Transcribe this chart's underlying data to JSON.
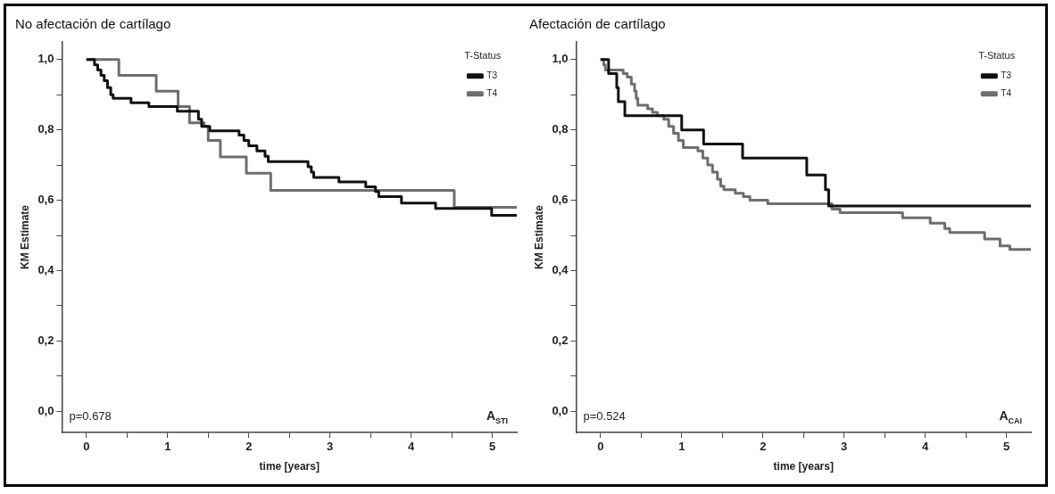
{
  "chart_data": [
    {
      "type": "step",
      "title": "No afectación de cartílago",
      "xlabel": "time [years]",
      "ylabel": "KM Estimate",
      "legend_title": "T-Status",
      "legend": "top right",
      "grid": false,
      "xlim": [
        -0.3,
        5.3
      ],
      "ylim": [
        -0.06,
        1.05
      ],
      "xticks": [
        0,
        {
          "value": 0.5,
          "label": null
        },
        1,
        {
          "value": 1.5,
          "label": null
        },
        2,
        {
          "value": 2.5,
          "label": null
        },
        3,
        {
          "value": 3.5,
          "label": null
        },
        4,
        {
          "value": 4.5,
          "label": null
        },
        5
      ],
      "yticks": [
        {
          "value": 0,
          "label": "0,0"
        },
        {
          "value": 0.1,
          "label": null
        },
        {
          "value": 0.2,
          "label": "0,2"
        },
        {
          "value": 0.3,
          "label": null
        },
        {
          "value": 0.4,
          "label": "0,4"
        },
        {
          "value": 0.5,
          "label": null
        },
        {
          "value": 0.6,
          "label": "0,6"
        },
        {
          "value": 0.7,
          "label": null
        },
        {
          "value": 0.8,
          "label": "0,8"
        },
        {
          "value": 0.9,
          "label": null
        },
        {
          "value": 1,
          "label": "1,0"
        }
      ],
      "annotations": [
        "p=0.678",
        "A$_{STI}$"
      ],
      "series": [
        {
          "name": "T3",
          "color": "#111111",
          "x": [
            0,
            0.1,
            0.14,
            0.18,
            0.22,
            0.26,
            0.3,
            0.33,
            0.55,
            0.77,
            1.12,
            1.38,
            1.42,
            1.52,
            1.88,
            1.94,
            2.0,
            2.1,
            2.2,
            2.24,
            2.73,
            2.77,
            2.8,
            3.11,
            3.44,
            3.56,
            3.6,
            3.88,
            4.3,
            4.99,
            5.3
          ],
          "values": [
            1,
            0.985,
            0.97,
            0.955,
            0.94,
            0.92,
            0.9,
            0.89,
            0.877,
            0.866,
            0.853,
            0.83,
            0.81,
            0.797,
            0.785,
            0.77,
            0.755,
            0.74,
            0.725,
            0.71,
            0.695,
            0.68,
            0.665,
            0.652,
            0.638,
            0.625,
            0.61,
            0.592,
            0.577,
            0.557,
            0.557
          ]
        },
        {
          "name": "T4",
          "color": "#6e6e6e",
          "x": [
            0,
            0.4,
            0.86,
            1.13,
            1.27,
            1.45,
            1.5,
            1.65,
            1.97,
            2.27,
            4.53,
            5.3
          ],
          "values": [
            1,
            0.955,
            0.91,
            0.866,
            0.82,
            0.81,
            0.77,
            0.723,
            0.677,
            0.628,
            0.58,
            0.58
          ]
        }
      ]
    },
    {
      "type": "step",
      "title": "Afectación de cartílago",
      "xlabel": "time [years]",
      "ylabel": "KM Estimate",
      "legend_title": "T-Status",
      "legend": "top right",
      "grid": false,
      "xlim": [
        -0.3,
        5.3
      ],
      "ylim": [
        -0.06,
        1.05
      ],
      "xticks": [
        0,
        {
          "value": 0.5,
          "label": null
        },
        1,
        {
          "value": 1.5,
          "label": null
        },
        2,
        {
          "value": 2.5,
          "label": null
        },
        3,
        {
          "value": 3.5,
          "label": null
        },
        4,
        {
          "value": 4.5,
          "label": null
        },
        5
      ],
      "yticks": [
        {
          "value": 0,
          "label": "0,0"
        },
        {
          "value": 0.1,
          "label": null
        },
        {
          "value": 0.2,
          "label": "0,2"
        },
        {
          "value": 0.3,
          "label": null
        },
        {
          "value": 0.4,
          "label": "0,4"
        },
        {
          "value": 0.5,
          "label": null
        },
        {
          "value": 0.6,
          "label": "0,6"
        },
        {
          "value": 0.7,
          "label": null
        },
        {
          "value": 0.8,
          "label": "0,8"
        },
        {
          "value": 0.9,
          "label": null
        },
        {
          "value": 1,
          "label": "1,0"
        }
      ],
      "annotations": [
        "p=0.524",
        "A$_{CAI}$"
      ],
      "series": [
        {
          "name": "T3",
          "color": "#111111",
          "x": [
            0,
            0.1,
            0.2,
            0.22,
            0.3,
            1.0,
            1.27,
            1.75,
            2.54,
            2.77,
            2.81,
            5.3
          ],
          "values": [
            1,
            0.96,
            0.92,
            0.88,
            0.84,
            0.8,
            0.76,
            0.72,
            0.672,
            0.63,
            0.584,
            0.584
          ]
        },
        {
          "name": "T4",
          "color": "#6e6e6e",
          "x": [
            0,
            0.04,
            0.06,
            0.28,
            0.33,
            0.38,
            0.42,
            0.44,
            0.46,
            0.58,
            0.64,
            0.7,
            0.78,
            0.84,
            0.9,
            0.96,
            1.02,
            1.2,
            1.26,
            1.32,
            1.38,
            1.44,
            1.48,
            1.52,
            1.66,
            1.76,
            1.84,
            2.06,
            2.85,
            2.95,
            3.72,
            4.06,
            4.24,
            4.3,
            4.73,
            4.92,
            5.04,
            5.3
          ],
          "values": [
            1,
            0.985,
            0.97,
            0.96,
            0.95,
            0.93,
            0.91,
            0.89,
            0.87,
            0.86,
            0.85,
            0.84,
            0.83,
            0.81,
            0.79,
            0.77,
            0.75,
            0.74,
            0.72,
            0.7,
            0.68,
            0.66,
            0.64,
            0.63,
            0.62,
            0.61,
            0.6,
            0.59,
            0.575,
            0.565,
            0.55,
            0.535,
            0.52,
            0.508,
            0.49,
            0.47,
            0.46,
            0.46
          ]
        }
      ]
    }
  ]
}
